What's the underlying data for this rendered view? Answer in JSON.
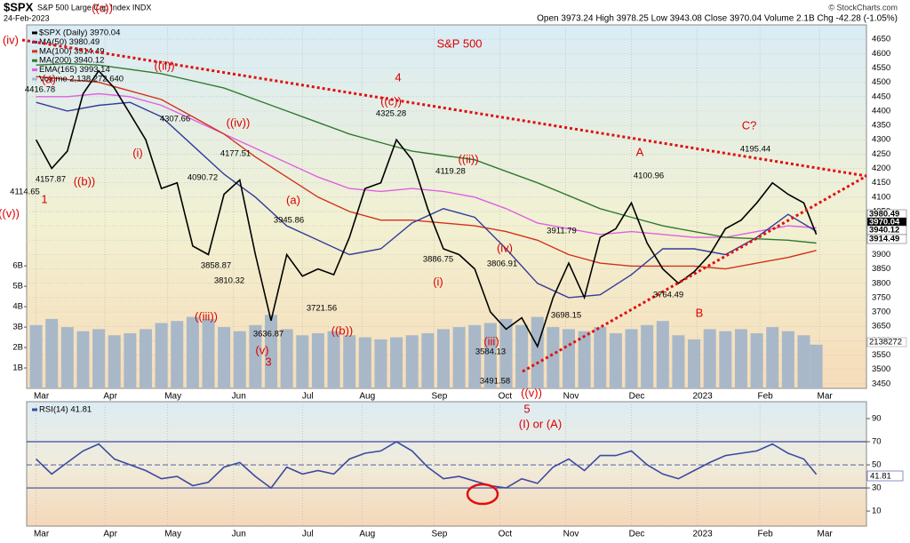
{
  "chart_data": [
    {
      "type": "line",
      "title": "$SPX",
      "subtitle": "S&P 500 Large Cap Index INDX",
      "date": "24-Feb-2023",
      "quote": "Open 3973.24 High 3978.25 Low 3943.08 Close 3970.04 Volume 2.1B Chg -42.28 (-1.05%)",
      "credit": "© StockCharts.com",
      "xlim": [
        -3,
        265
      ],
      "xticks": [
        {
          "value": 0,
          "label": "Mar"
        },
        {
          "value": 22,
          "label": "Apr"
        },
        {
          "value": 42,
          "label": "May"
        },
        {
          "value": 63,
          "label": "Jun"
        },
        {
          "value": 85,
          "label": "Jul"
        },
        {
          "value": 104,
          "label": "Aug"
        },
        {
          "value": 127,
          "label": "Sep"
        },
        {
          "value": 148,
          "label": "Oct"
        },
        {
          "value": 169,
          "label": "Nov"
        },
        {
          "value": 190,
          "label": "Dec"
        },
        {
          "value": 211,
          "label": "2023"
        },
        {
          "value": 231,
          "label": "Feb"
        },
        {
          "value": 250,
          "label": "Mar"
        }
      ],
      "ylim": [
        3434,
        4700
      ],
      "yticks": [
        3450,
        3500,
        3550,
        3600,
        3650,
        3700,
        3750,
        3800,
        3850,
        3900,
        3950,
        4000,
        4050,
        4100,
        4150,
        4200,
        4250,
        4300,
        4350,
        4400,
        4450,
        4500,
        4550,
        4600,
        4650
      ],
      "y2lim": [
        0,
        17.8
      ],
      "y2ticks": [
        {
          "value": 1,
          "label": "1B"
        },
        {
          "value": 2,
          "label": "2B"
        },
        {
          "value": 3,
          "label": "3B"
        },
        {
          "value": 4,
          "label": "4B"
        },
        {
          "value": 5,
          "label": "5B"
        },
        {
          "value": 6,
          "label": "6B"
        }
      ],
      "grid": true,
      "series": [
        {
          "name": "$SPX (Daily) 3970.04",
          "color": "#000000",
          "x": [
            0,
            5,
            10,
            15,
            20,
            25,
            30,
            35,
            40,
            45,
            50,
            55,
            60,
            65,
            70,
            75,
            80,
            85,
            90,
            95,
            100,
            105,
            110,
            115,
            120,
            125,
            130,
            135,
            140,
            145,
            150,
            155,
            160,
            165,
            170,
            175,
            180,
            185,
            190,
            195,
            200,
            205,
            210,
            215,
            220,
            225,
            230,
            235,
            240,
            245,
            249
          ],
          "values": [
            4300,
            4200,
            4260,
            4460,
            4540,
            4480,
            4390,
            4300,
            4130,
            4150,
            3930,
            3900,
            4110,
            4160,
            3900,
            3670,
            3900,
            3825,
            3850,
            3830,
            3960,
            4130,
            4150,
            4300,
            4230,
            4060,
            3920,
            3900,
            3850,
            3700,
            3640,
            3680,
            3580,
            3750,
            3870,
            3750,
            3960,
            3990,
            4080,
            3940,
            3850,
            3800,
            3840,
            3900,
            3990,
            4020,
            4080,
            4150,
            4110,
            4080,
            3970.04
          ]
        },
        {
          "name": "MA(50) 3980.49",
          "color": "#343c9c",
          "x": [
            0,
            10,
            20,
            30,
            40,
            50,
            60,
            70,
            80,
            90,
            100,
            110,
            120,
            130,
            140,
            150,
            160,
            170,
            180,
            190,
            200,
            210,
            220,
            230,
            240,
            249
          ],
          "values": [
            4430,
            4400,
            4420,
            4430,
            4380,
            4280,
            4180,
            4100,
            4000,
            3950,
            3900,
            3920,
            4010,
            4060,
            4030,
            3920,
            3800,
            3750,
            3760,
            3830,
            3920,
            3920,
            3900,
            3960,
            4040,
            3980.49
          ]
        },
        {
          "name": "MA(100) 3914.49",
          "color": "#d4301c",
          "x": [
            0,
            10,
            20,
            30,
            40,
            50,
            60,
            70,
            80,
            90,
            100,
            110,
            120,
            130,
            140,
            150,
            160,
            170,
            180,
            190,
            200,
            210,
            220,
            230,
            240,
            249
          ],
          "values": [
            4520,
            4510,
            4500,
            4470,
            4440,
            4380,
            4320,
            4240,
            4170,
            4100,
            4050,
            4020,
            4020,
            4010,
            4000,
            3980,
            3950,
            3900,
            3870,
            3860,
            3860,
            3860,
            3850,
            3870,
            3890,
            3914.49
          ]
        },
        {
          "name": "MA(200) 3940.12",
          "color": "#2f7a2f",
          "x": [
            0,
            10,
            20,
            30,
            40,
            50,
            60,
            70,
            80,
            90,
            100,
            110,
            120,
            130,
            140,
            150,
            160,
            170,
            180,
            190,
            200,
            210,
            220,
            230,
            240,
            249
          ],
          "values": [
            4560,
            4565,
            4560,
            4545,
            4530,
            4505,
            4480,
            4440,
            4400,
            4360,
            4320,
            4290,
            4260,
            4245,
            4230,
            4190,
            4150,
            4105,
            4060,
            4030,
            4000,
            3980,
            3960,
            3955,
            3950,
            3940.12
          ]
        },
        {
          "name": "EMA(165) 3993.14",
          "color": "#e060e0",
          "x": [
            0,
            10,
            20,
            30,
            40,
            50,
            60,
            70,
            80,
            90,
            100,
            110,
            120,
            130,
            140,
            150,
            160,
            170,
            180,
            190,
            200,
            210,
            220,
            230,
            240,
            249
          ],
          "values": [
            4450,
            4450,
            4460,
            4450,
            4420,
            4370,
            4320,
            4270,
            4220,
            4170,
            4130,
            4120,
            4130,
            4120,
            4100,
            4060,
            4010,
            3990,
            3970,
            3980,
            3970,
            3960,
            3960,
            3980,
            4000,
            3993.14
          ]
        },
        {
          "name": "Volume 2,138,272,640",
          "color": "#a9b8c8",
          "type": "bar",
          "axis": "y2",
          "x": [
            0,
            5,
            10,
            15,
            20,
            25,
            30,
            35,
            40,
            45,
            50,
            55,
            60,
            65,
            70,
            75,
            80,
            85,
            90,
            95,
            100,
            105,
            110,
            115,
            120,
            125,
            130,
            135,
            140,
            145,
            150,
            155,
            160,
            165,
            170,
            175,
            180,
            185,
            190,
            195,
            200,
            205,
            210,
            215,
            220,
            225,
            230,
            235,
            240,
            245,
            249
          ],
          "values": [
            3.1,
            3.4,
            3.0,
            2.8,
            2.9,
            2.6,
            2.7,
            2.9,
            3.2,
            3.3,
            3.5,
            3.4,
            3.0,
            2.8,
            3.1,
            3.6,
            2.9,
            2.6,
            2.7,
            2.8,
            2.6,
            2.5,
            2.4,
            2.5,
            2.6,
            2.7,
            2.9,
            3.0,
            3.1,
            3.2,
            3.4,
            3.1,
            3.5,
            3.0,
            2.9,
            2.8,
            3.0,
            2.7,
            2.9,
            3.1,
            3.3,
            2.6,
            2.4,
            2.9,
            2.8,
            2.9,
            2.7,
            3.0,
            2.8,
            2.6,
            2.14
          ]
        }
      ],
      "annotations": [
        {
          "text": "(iv)",
          "color": "#dd0000"
        },
        {
          "text": "(a)",
          "color": "#dd0000"
        },
        {
          "text": "((c))",
          "color": "#dd0000"
        },
        {
          "text": "((ii))",
          "color": "#dd0000"
        },
        {
          "text": "4416.78",
          "color": "#000000"
        },
        {
          "text": "4307.66",
          "color": "#000000"
        },
        {
          "text": "(i)",
          "color": "#dd0000"
        },
        {
          "text": "4157.87",
          "color": "#000000"
        },
        {
          "text": "((b))",
          "color": "#dd0000"
        },
        {
          "text": "4114.65",
          "color": "#000000"
        },
        {
          "text": "((v))",
          "color": "#dd0000"
        },
        {
          "text": "1",
          "color": "#dd0000"
        },
        {
          "text": "4090.72",
          "color": "#000000"
        },
        {
          "text": "4177.51",
          "color": "#000000"
        },
        {
          "text": "((iv))",
          "color": "#dd0000"
        },
        {
          "text": "3945.86",
          "color": "#000000"
        },
        {
          "text": "(a)",
          "color": "#dd0000"
        },
        {
          "text": "3858.87",
          "color": "#000000"
        },
        {
          "text": "3810.32",
          "color": "#000000"
        },
        {
          "text": "((iii))",
          "color": "#dd0000"
        },
        {
          "text": "3721.56",
          "color": "#000000"
        },
        {
          "text": "3636.87",
          "color": "#000000"
        },
        {
          "text": "(v)",
          "color": "#dd0000"
        },
        {
          "text": "3",
          "color": "#dd0000"
        },
        {
          "text": "((b))",
          "color": "#dd0000"
        },
        {
          "text": "4",
          "color": "#dd0000"
        },
        {
          "text": "S&P 500",
          "color": "#dd0000"
        },
        {
          "text": "((c))",
          "color": "#dd0000"
        },
        {
          "text": "4325.28",
          "color": "#000000"
        },
        {
          "text": "4119.28",
          "color": "#000000"
        },
        {
          "text": "((ii))",
          "color": "#dd0000"
        },
        {
          "text": "3886.75",
          "color": "#000000"
        },
        {
          "text": "(i)",
          "color": "#dd0000"
        },
        {
          "text": "(iv)",
          "color": "#dd0000"
        },
        {
          "text": "3806.91",
          "color": "#000000"
        },
        {
          "text": "3911.79",
          "color": "#000000"
        },
        {
          "text": "3698.15",
          "color": "#000000"
        },
        {
          "text": "(iii)",
          "color": "#dd0000"
        },
        {
          "text": "3584.13",
          "color": "#000000"
        },
        {
          "text": "3491.58",
          "color": "#000000"
        },
        {
          "text": "((v))",
          "color": "#dd0000"
        },
        {
          "text": "5",
          "color": "#dd0000"
        },
        {
          "text": "(I) or (A)",
          "color": "#dd0000"
        },
        {
          "text": "A",
          "color": "#dd0000"
        },
        {
          "text": "4100.96",
          "color": "#000000"
        },
        {
          "text": "3764.49",
          "color": "#000000"
        },
        {
          "text": "B",
          "color": "#dd0000"
        },
        {
          "text": "C?",
          "color": "#dd0000"
        },
        {
          "text": "4195.44",
          "color": "#000000"
        }
      ],
      "price_tags": [
        "3980.49",
        "3970.04",
        "3940.12",
        "3914.49"
      ],
      "volume_tag": "2138272"
    },
    {
      "type": "line",
      "xlim": [
        -3,
        265
      ],
      "xticks": [
        {
          "value": 0,
          "label": "Mar"
        },
        {
          "value": 22,
          "label": "Apr"
        },
        {
          "value": 42,
          "label": "May"
        },
        {
          "value": 63,
          "label": "Jun"
        },
        {
          "value": 85,
          "label": "Jul"
        },
        {
          "value": 104,
          "label": "Aug"
        },
        {
          "value": 127,
          "label": "Sep"
        },
        {
          "value": 148,
          "label": "Oct"
        },
        {
          "value": 169,
          "label": "Nov"
        },
        {
          "value": 190,
          "label": "Dec"
        },
        {
          "value": 211,
          "label": "2023"
        },
        {
          "value": 231,
          "label": "Feb"
        },
        {
          "value": 250,
          "label": "Mar"
        }
      ],
      "ylim": [
        -3,
        104.6
      ],
      "yticks": [
        10,
        30,
        50,
        70,
        90
      ],
      "bands": [
        30,
        70
      ],
      "midline": 50,
      "series": [
        {
          "name": "RSI(14) 41.81",
          "color": "#3b4aa0",
          "x": [
            0,
            5,
            10,
            15,
            20,
            25,
            30,
            35,
            40,
            45,
            50,
            55,
            60,
            65,
            70,
            75,
            80,
            85,
            90,
            95,
            100,
            105,
            110,
            115,
            120,
            125,
            130,
            135,
            140,
            145,
            150,
            155,
            160,
            165,
            170,
            175,
            180,
            185,
            190,
            195,
            200,
            205,
            210,
            215,
            220,
            225,
            230,
            235,
            240,
            245,
            249
          ],
          "values": [
            55,
            42,
            52,
            62,
            68,
            55,
            50,
            45,
            38,
            40,
            32,
            35,
            48,
            52,
            40,
            30,
            48,
            42,
            45,
            42,
            55,
            60,
            62,
            70,
            62,
            48,
            38,
            40,
            36,
            32,
            30,
            38,
            34,
            48,
            55,
            45,
            58,
            58,
            62,
            50,
            42,
            38,
            45,
            52,
            58,
            60,
            62,
            68,
            60,
            55,
            41.81
          ]
        }
      ],
      "value_tag": "41.81"
    }
  ]
}
